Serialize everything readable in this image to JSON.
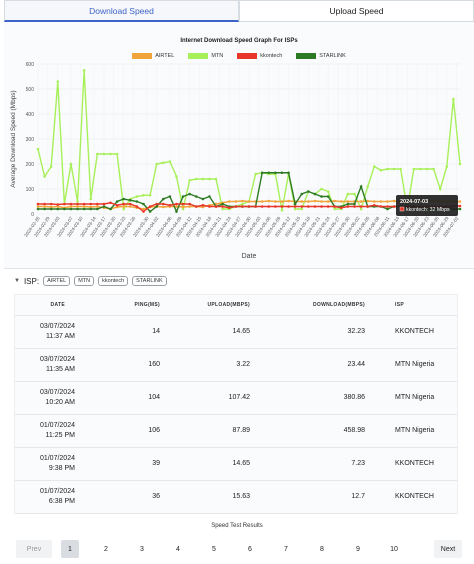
{
  "tabs": [
    {
      "label": "Download Speed",
      "active": true
    },
    {
      "label": "Upload Speed",
      "active": false
    }
  ],
  "colors": {
    "AIRTEL": "#f0a43a",
    "MTN": "#a8f05a",
    "kkontech": "#e8362a",
    "STARLINK": "#2d7a24",
    "accent": "#3d63c9"
  },
  "chart_data": {
    "type": "line",
    "title": "Internet Download Speed Graph For ISPs",
    "xlabel": "Date",
    "ylabel": "Average Download Speed (Mbps)",
    "ylim": [
      0,
      600
    ],
    "yticks": [
      0,
      100,
      200,
      300,
      400,
      500,
      600
    ],
    "x": [
      "2024-02-26",
      "2024-02-28",
      "2024-03-01",
      "2024-03-03",
      "2024-03-05",
      "2024-03-07",
      "2024-03-09",
      "2024-03-11",
      "2024-03-13",
      "2024-03-15",
      "2024-03-17",
      "2024-03-19",
      "2024-03-21",
      "2024-03-23",
      "2024-03-25",
      "2024-03-27",
      "2024-03-29",
      "2024-03-31",
      "2024-04-02",
      "2024-04-04",
      "2024-04-06",
      "2024-04-08",
      "2024-04-10",
      "2024-04-12",
      "2024-04-14",
      "2024-04-16",
      "2024-04-18",
      "2024-04-20",
      "2024-04-22",
      "2024-04-24",
      "2024-04-26",
      "2024-04-28",
      "2024-04-30",
      "2024-05-02",
      "2024-05-04",
      "2024-05-06",
      "2024-05-08",
      "2024-05-10",
      "2024-05-12",
      "2024-05-14",
      "2024-05-16",
      "2024-05-18",
      "2024-05-20",
      "2024-05-22",
      "2024-05-24",
      "2024-05-26",
      "2024-05-28",
      "2024-05-30",
      "2024-06-01",
      "2024-06-03",
      "2024-06-05",
      "2024-06-07",
      "2024-06-09",
      "2024-06-11",
      "2024-06-13",
      "2024-06-15",
      "2024-06-17",
      "2024-06-19",
      "2024-06-21",
      "2024-06-23",
      "2024-06-25",
      "2024-06-27",
      "2024-06-29",
      "2024-07-01",
      "2024-07-03"
    ],
    "xticks": [
      "2024-02-26",
      "2024-02-29",
      "2024-03-03",
      "2024-03-07",
      "2024-03-10",
      "2024-03-14",
      "2024-03-17",
      "2024-03-20",
      "2024-03-23",
      "2024-03-26",
      "2024-03-30",
      "2024-04-02",
      "2024-04-06",
      "2024-04-09",
      "2024-04-12",
      "2024-04-15",
      "2024-04-18",
      "2024-04-21",
      "2024-04-24",
      "2024-04-27",
      "2024-04-30",
      "2024-05-03",
      "2024-05-06",
      "2024-05-09",
      "2024-05-12",
      "2024-05-15",
      "2024-05-18",
      "2024-05-21",
      "2024-05-24",
      "2024-05-27",
      "2024-05-30",
      "2024-06-02",
      "2024-06-05",
      "2024-06-08",
      "2024-06-11",
      "2024-06-14",
      "2024-06-17",
      "2024-06-20",
      "2024-06-23",
      "2024-06-26",
      "2024-06-29",
      "2024-07-02"
    ],
    "series": [
      {
        "name": "AIRTEL",
        "values": [
          30,
          30,
          28,
          30,
          25,
          30,
          30,
          30,
          28,
          30,
          25,
          20,
          28,
          30,
          30,
          25,
          20,
          28,
          30,
          28,
          30,
          30,
          28,
          30,
          30,
          28,
          35,
          40,
          45,
          50,
          50,
          52,
          50,
          50,
          50,
          52,
          50,
          50,
          52,
          50,
          50,
          50,
          52,
          50,
          50,
          52,
          50,
          50,
          50,
          50,
          52,
          50,
          50,
          50,
          52,
          50,
          50,
          52,
          50,
          50,
          52,
          50,
          50,
          50,
          50
        ]
      },
      {
        "name": "MTN",
        "values": [
          260,
          150,
          190,
          530,
          40,
          200,
          50,
          575,
          60,
          240,
          240,
          240,
          240,
          20,
          60,
          70,
          75,
          75,
          200,
          205,
          210,
          150,
          20,
          135,
          140,
          140,
          140,
          140,
          20,
          20,
          30,
          40,
          50,
          160,
          165,
          160,
          160,
          15,
          160,
          20,
          20,
          90,
          80,
          100,
          90,
          20,
          20,
          80,
          80,
          20,
          110,
          190,
          175,
          180,
          180,
          180,
          20,
          180,
          180,
          180,
          180,
          100,
          190,
          460,
          200
        ]
      },
      {
        "name": "kkontech",
        "values": [
          40,
          40,
          40,
          38,
          40,
          40,
          40,
          40,
          40,
          40,
          40,
          45,
          35,
          40,
          40,
          30,
          10,
          30,
          40,
          40,
          35,
          40,
          40,
          40,
          30,
          35,
          30,
          30,
          30,
          25,
          30,
          30,
          30,
          30,
          30,
          30,
          30,
          30,
          30,
          30,
          30,
          30,
          30,
          30,
          30,
          30,
          25,
          30,
          30,
          30,
          30,
          35,
          30,
          30,
          30,
          30,
          30,
          30,
          30,
          30,
          30,
          30,
          30,
          32,
          32
        ]
      },
      {
        "name": "STARLINK",
        "values": [
          20,
          20,
          20,
          20,
          20,
          20,
          20,
          20,
          20,
          20,
          30,
          20,
          50,
          60,
          55,
          50,
          40,
          10,
          30,
          60,
          70,
          10,
          70,
          80,
          70,
          60,
          70,
          30,
          40,
          30,
          30,
          30,
          30,
          30,
          165,
          165,
          165,
          165,
          165,
          40,
          80,
          90,
          80,
          70,
          70,
          30,
          30,
          40,
          40,
          110,
          30,
          30,
          30,
          20,
          30,
          30,
          30,
          20,
          20,
          20,
          20,
          20,
          30,
          20,
          20
        ]
      }
    ],
    "tooltip": {
      "title": "2024-07-03",
      "label": "kkontech: 32 Mbps"
    },
    "legend_placement": "top",
    "grid": true
  },
  "filter": {
    "label": "ISP:",
    "chips": [
      "AIRTEL",
      "MTN",
      "kkontech",
      "STARLINK"
    ]
  },
  "table": {
    "headers": [
      "DATE",
      "PING(MS)",
      "UPLOAD(MBPS)",
      "DOWNLOAD(MBPS)",
      "ISP"
    ],
    "rows": [
      {
        "date": "03/07/2024",
        "time": "11:37 AM",
        "ping": "14",
        "upload": "14.65",
        "download": "32.23",
        "isp": "KKONTECH"
      },
      {
        "date": "03/07/2024",
        "time": "11:35 AM",
        "ping": "160",
        "upload": "3.22",
        "download": "23.44",
        "isp": "MTN Nigeria"
      },
      {
        "date": "03/07/2024",
        "time": "10:20 AM",
        "ping": "104",
        "upload": "107.42",
        "download": "380.86",
        "isp": "MTN Nigeria"
      },
      {
        "date": "01/07/2024",
        "time": "11:25 PM",
        "ping": "106",
        "upload": "87.89",
        "download": "458.98",
        "isp": "MTN Nigeria"
      },
      {
        "date": "01/07/2024",
        "time": "9:38 PM",
        "ping": "39",
        "upload": "14.65",
        "download": "7.23",
        "isp": "KKONTECH"
      },
      {
        "date": "01/07/2024",
        "time": "6:38 PM",
        "ping": "36",
        "upload": "15.63",
        "download": "12.7",
        "isp": "KKONTECH"
      }
    ]
  },
  "results_label": "Speed Test Results",
  "pagination": {
    "prev": "Prev",
    "next": "Next",
    "pages": [
      "1",
      "2",
      "3",
      "4",
      "5",
      "6",
      "7",
      "8",
      "9",
      "10"
    ],
    "current": "1"
  }
}
